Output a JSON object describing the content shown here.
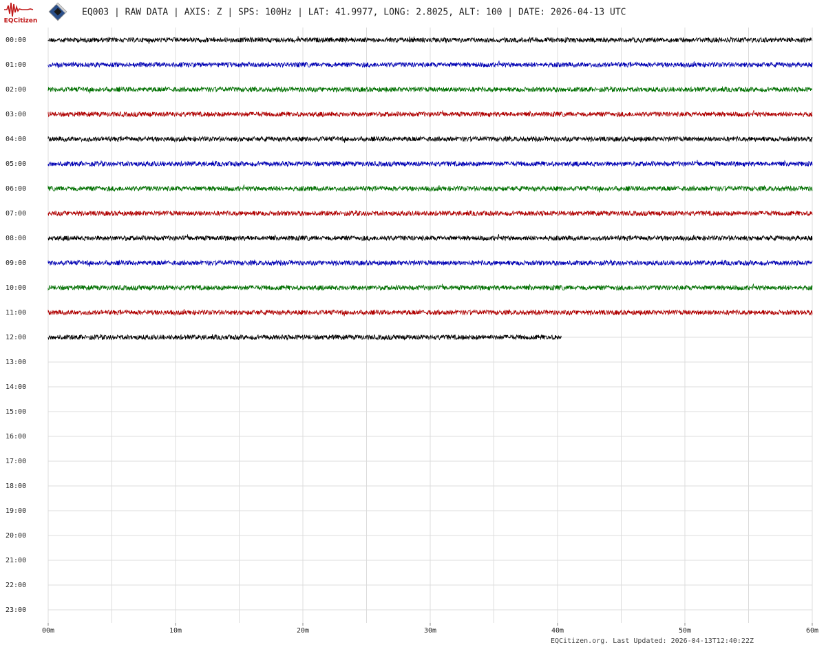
{
  "chart_data": {
    "type": "helicorder",
    "logo": "EQCitizen",
    "title": "EQ003 | RAW DATA | AXIS: Z | SPS: 100Hz | LAT: 41.9977, LONG: 2.8025, ALT: 100 | DATE: 2026-04-13 UTC",
    "footer": "EQCitizen.org. Last Updated: 2026-04-13T12:40:22Z",
    "categories": [
      "00:00",
      "01:00",
      "02:00",
      "03:00",
      "04:00",
      "05:00",
      "06:00",
      "07:00",
      "08:00",
      "09:00",
      "10:00",
      "11:00",
      "12:00",
      "13:00",
      "14:00",
      "15:00",
      "16:00",
      "17:00",
      "18:00",
      "19:00",
      "20:00",
      "21:00",
      "22:00",
      "23:00"
    ],
    "values": [
      60,
      60,
      60,
      60,
      60,
      60,
      60,
      60,
      60,
      60,
      60,
      60,
      40.3,
      null,
      null,
      null,
      null,
      null,
      null,
      null,
      null,
      null,
      null,
      null
    ],
    "colors": [
      "#000000",
      "#0000b4",
      "#007000",
      "#b00000"
    ],
    "xlim": [
      0,
      60
    ],
    "xticks": [
      {
        "value": 0,
        "label": "00m"
      },
      {
        "value": 10,
        "label": "10m"
      },
      {
        "value": 20,
        "label": "20m"
      },
      {
        "value": 30,
        "label": "30m"
      },
      {
        "value": 40,
        "label": "40m"
      },
      {
        "value": 50,
        "label": "50m"
      },
      {
        "value": 60,
        "label": "60m"
      }
    ],
    "xgrid": [
      0,
      5,
      10,
      15,
      20,
      25,
      30,
      35,
      40,
      45,
      50,
      55,
      60
    ],
    "grid": true
  }
}
